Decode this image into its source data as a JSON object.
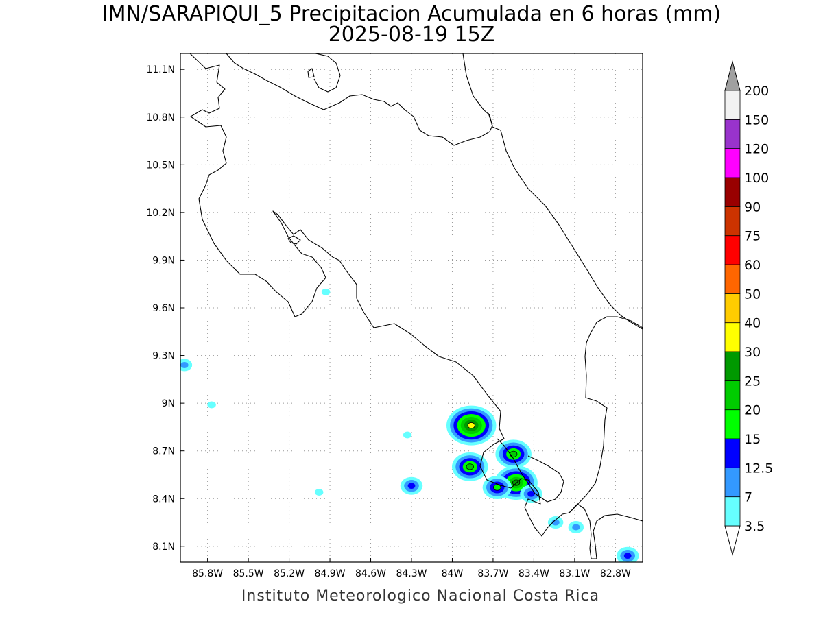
{
  "title": {
    "line1": "IMN/SARAPIQUI_5 Precipitacion Acumulada en 6 horas (mm)",
    "line2": "2025-08-19 15Z"
  },
  "footer": "Instituto Meteorologico Nacional Costa Rica",
  "map": {
    "extent": {
      "lon_min": -86.0,
      "lon_max": -82.6,
      "lat_min": 8.0,
      "lat_max": 11.2
    },
    "lon_ticks": [
      {
        "value": -85.8,
        "label": "85.8W"
      },
      {
        "value": -85.5,
        "label": "85.5W"
      },
      {
        "value": -85.2,
        "label": "85.2W"
      },
      {
        "value": -84.9,
        "label": "84.9W"
      },
      {
        "value": -84.6,
        "label": "84.6W"
      },
      {
        "value": -84.3,
        "label": "84.3W"
      },
      {
        "value": -84.0,
        "label": "84W"
      },
      {
        "value": -83.7,
        "label": "83.7W"
      },
      {
        "value": -83.4,
        "label": "83.4W"
      },
      {
        "value": -83.1,
        "label": "83.1W"
      },
      {
        "value": -82.8,
        "label": "82.8W"
      }
    ],
    "lat_ticks": [
      {
        "value": 11.1,
        "label": "11.1N"
      },
      {
        "value": 10.8,
        "label": "10.8N"
      },
      {
        "value": 10.5,
        "label": "10.5N"
      },
      {
        "value": 10.2,
        "label": "10.2N"
      },
      {
        "value": 9.9,
        "label": "9.9N"
      },
      {
        "value": 9.6,
        "label": "9.6N"
      },
      {
        "value": 9.3,
        "label": "9.3N"
      },
      {
        "value": 9.0,
        "label": "9N"
      },
      {
        "value": 8.7,
        "label": "8.7N"
      },
      {
        "value": 8.4,
        "label": "8.4N"
      },
      {
        "value": 8.1,
        "label": "8.1N"
      }
    ],
    "grid": "dotted",
    "coast_color": "#000000"
  },
  "colorbar": {
    "levels": [
      "3.5",
      "7",
      "12.5",
      "15",
      "20",
      "25",
      "30",
      "40",
      "50",
      "60",
      "75",
      "90",
      "100",
      "120",
      "150",
      "200"
    ],
    "colors": [
      "#66ffff",
      "#3399ff",
      "#0000ff",
      "#00ff00",
      "#00cc00",
      "#009900",
      "#ffff00",
      "#ffcc00",
      "#ff6600",
      "#ff0000",
      "#cc3300",
      "#990000",
      "#ff00ff",
      "#9933cc",
      "#f2f2f2"
    ],
    "over_color": "#a0a0a0",
    "under_color": "#ffffff"
  },
  "precip_cells": [
    {
      "lon": -83.86,
      "lat": 8.86,
      "level": 6
    },
    {
      "lon": -83.87,
      "lat": 8.6,
      "level": 4
    },
    {
      "lon": -83.55,
      "lat": 8.68,
      "level": 4
    },
    {
      "lon": -83.53,
      "lat": 8.5,
      "level": 5
    },
    {
      "lon": -83.67,
      "lat": 8.47,
      "level": 3
    },
    {
      "lon": -84.3,
      "lat": 8.48,
      "level": 2
    },
    {
      "lon": -83.42,
      "lat": 8.43,
      "level": 2
    },
    {
      "lon": -83.24,
      "lat": 8.25,
      "level": 1
    },
    {
      "lon": -83.09,
      "lat": 8.22,
      "level": 1
    },
    {
      "lon": -82.71,
      "lat": 8.04,
      "level": 2
    },
    {
      "lon": -85.97,
      "lat": 9.24,
      "level": 1
    },
    {
      "lon": -85.77,
      "lat": 8.99,
      "level": 0
    },
    {
      "lon": -84.93,
      "lat": 9.7,
      "level": 0
    },
    {
      "lon": -84.33,
      "lat": 8.8,
      "level": 0
    },
    {
      "lon": -84.98,
      "lat": 8.44,
      "level": 0
    }
  ]
}
